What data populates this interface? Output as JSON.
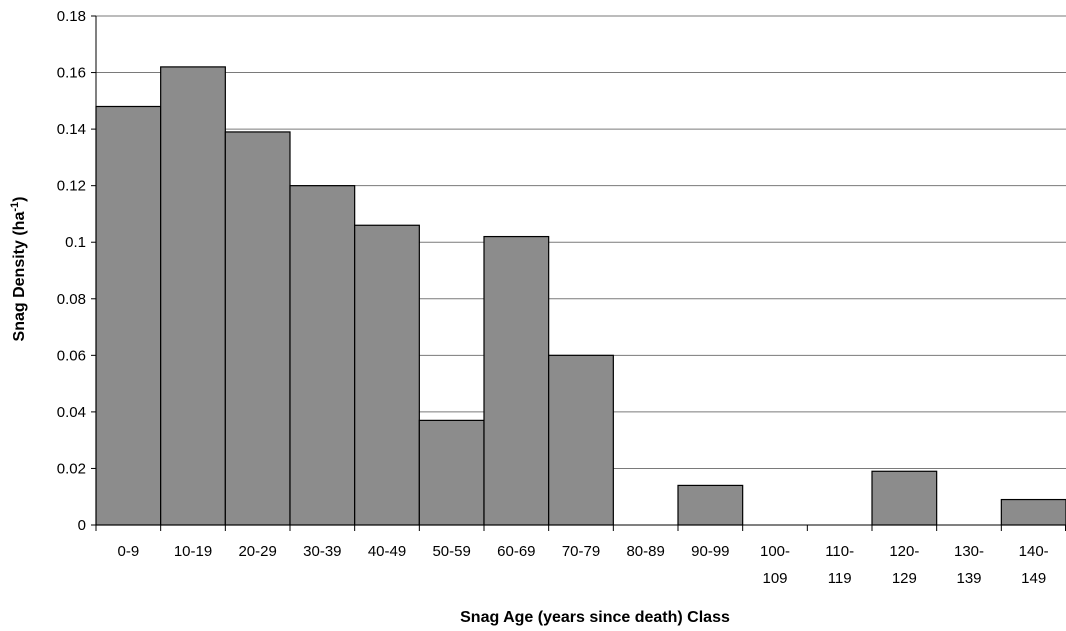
{
  "chart_data": {
    "type": "bar",
    "title": "",
    "xlabel": "Snag Age (years since death) Class",
    "ylabel_main": "Snag Density (ha",
    "ylabel_sup": "-1",
    "ylabel_close": ")",
    "ylim": [
      0,
      0.18
    ],
    "yticks": [
      "0",
      "0.02",
      "0.04",
      "0.06",
      "0.08",
      "0.1",
      "0.12",
      "0.14",
      "0.16",
      "0.18"
    ],
    "grid": true,
    "legend": "none",
    "bar_color": "#8c8c8c",
    "categories": [
      {
        "line1": "0-9",
        "line2": ""
      },
      {
        "line1": "10-19",
        "line2": ""
      },
      {
        "line1": "20-29",
        "line2": ""
      },
      {
        "line1": "30-39",
        "line2": ""
      },
      {
        "line1": "40-49",
        "line2": ""
      },
      {
        "line1": "50-59",
        "line2": ""
      },
      {
        "line1": "60-69",
        "line2": ""
      },
      {
        "line1": "70-79",
        "line2": ""
      },
      {
        "line1": "80-89",
        "line2": ""
      },
      {
        "line1": "90-99",
        "line2": ""
      },
      {
        "line1": "100-",
        "line2": "109"
      },
      {
        "line1": "110-",
        "line2": "119"
      },
      {
        "line1": "120-",
        "line2": "129"
      },
      {
        "line1": "130-",
        "line2": "139"
      },
      {
        "line1": "140-",
        "line2": "149"
      }
    ],
    "values": [
      0.148,
      0.162,
      0.139,
      0.12,
      0.106,
      0.037,
      0.102,
      0.06,
      0,
      0.014,
      0,
      0,
      0.019,
      0,
      0.009
    ]
  }
}
